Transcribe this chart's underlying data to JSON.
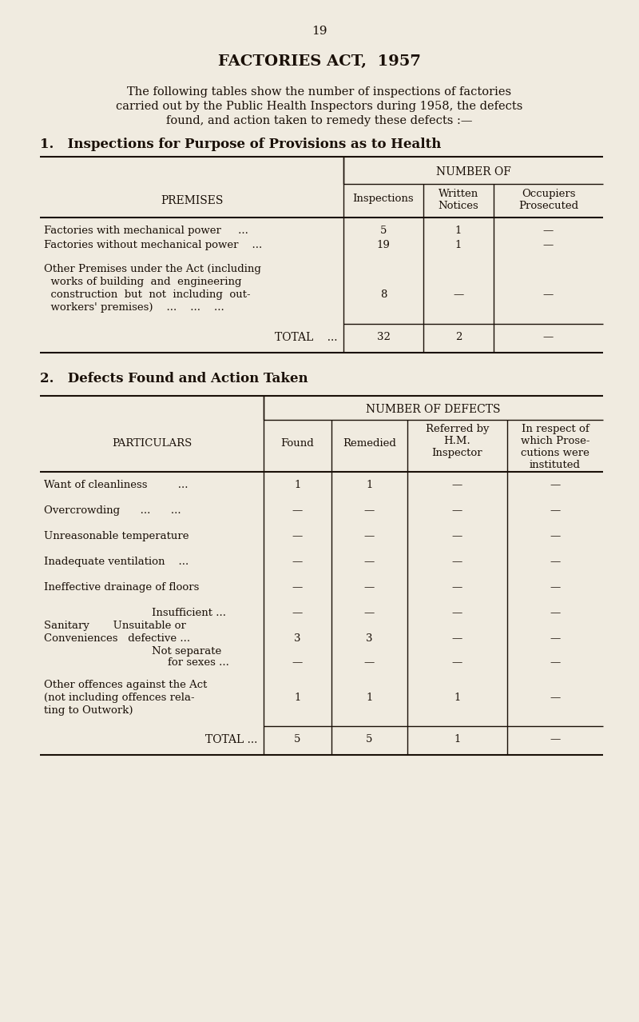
{
  "page_number": "19",
  "title": "FACTORIES ACT,  1957",
  "intro_line1": "The following tables show the number of inspections of factories",
  "intro_line2": "carried out by the Public Health Inspectors during 1958, the defects",
  "intro_line3": "found, and action taken to remedy these defects :—",
  "section1_heading": "1.   Inspections for Purpose of Provisions as to Health",
  "section1_col_group_header": "NUMBER OF",
  "section2_heading": "2.   Defects Found and Action Taken",
  "section2_col_group_header": "NUMBER OF DEFECTS",
  "bg_color": "#f0ebe0",
  "text_color": "#1a1008",
  "line_color": "#1a1008"
}
